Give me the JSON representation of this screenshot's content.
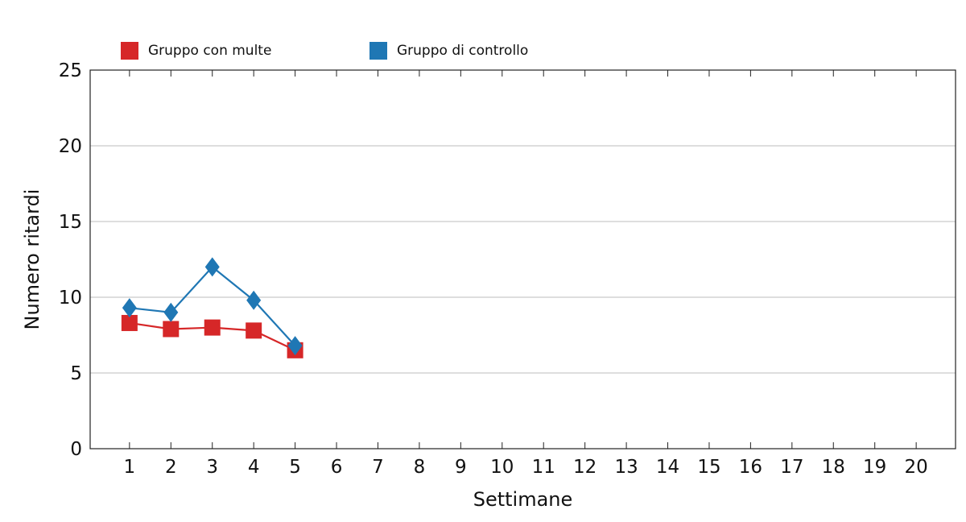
{
  "chart_data": {
    "type": "line",
    "title": "",
    "xlabel": "Settimane",
    "ylabel": "Numero ritardi",
    "x": [
      1,
      2,
      3,
      4,
      5
    ],
    "xticks": [
      "1",
      "2",
      "3",
      "4",
      "5",
      "6",
      "7",
      "8",
      "9",
      "10",
      "11",
      "12",
      "13",
      "14",
      "15",
      "16",
      "17",
      "18",
      "19",
      "20"
    ],
    "yticks": [
      "0",
      "5",
      "10",
      "15",
      "20",
      "25"
    ],
    "xlim": [
      0.05,
      20.95
    ],
    "ylim": [
      0,
      25
    ],
    "grid": "horizontal",
    "legend_position": "top",
    "series": [
      {
        "name": "Gruppo con multe",
        "values": [
          8.3,
          7.9,
          8.0,
          7.8,
          6.5
        ],
        "color": "#d62728",
        "marker": "square"
      },
      {
        "name": "Gruppo di controllo",
        "values": [
          9.3,
          9.0,
          12.0,
          9.8,
          6.8
        ],
        "color": "#1f77b4",
        "marker": "diamond"
      }
    ]
  }
}
